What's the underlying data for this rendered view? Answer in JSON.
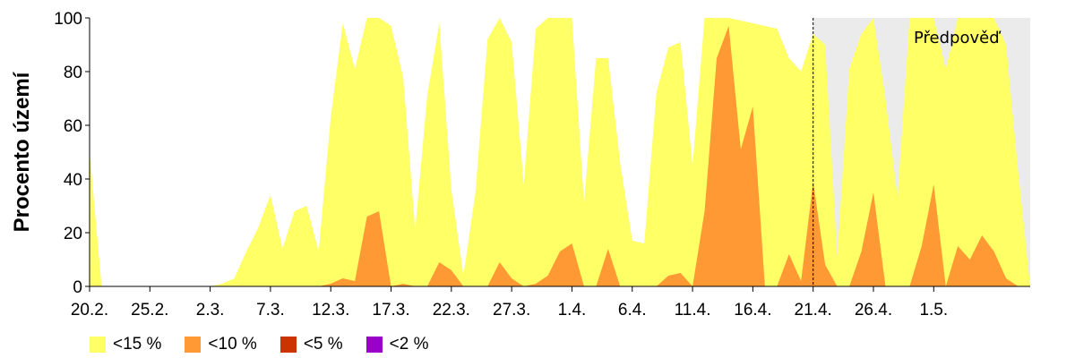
{
  "chart_data": {
    "type": "area",
    "ylabel": "Procento území",
    "ylim": [
      0,
      100
    ],
    "yticks": [
      "0",
      "20",
      "40",
      "60",
      "80",
      "100"
    ],
    "x_start": "20.2.",
    "x_end": "1.5.",
    "xticks": [
      "20.2.",
      "25.2.",
      "2.3.",
      "7.3.",
      "12.3.",
      "17.3.",
      "22.3.",
      "27.3.",
      "1.4.",
      "6.4.",
      "11.4.",
      "16.4.",
      "21.4.",
      "26.4.",
      "1.5."
    ],
    "forecast_label": "Předpověď",
    "forecast_start": "21.4.",
    "series": [
      {
        "name": "<15 %",
        "color": "#ffff66",
        "values": [
          50,
          0,
          0,
          0,
          0,
          0,
          0,
          0,
          0,
          0,
          0,
          1,
          3,
          13,
          22,
          34,
          14,
          28,
          30,
          13,
          63,
          98,
          81,
          100,
          100,
          97,
          78,
          21,
          71,
          98,
          36,
          4,
          35,
          92,
          100,
          91,
          38,
          96,
          100,
          100,
          100,
          31,
          85,
          85,
          46,
          17,
          16,
          72,
          89,
          91,
          45,
          100,
          100,
          100,
          99,
          98,
          97,
          96,
          85,
          80,
          94,
          90,
          11,
          81,
          94,
          100,
          70,
          33,
          100,
          100,
          100,
          81,
          100,
          100,
          100,
          100,
          90,
          43,
          0
        ]
      },
      {
        "name": "<10 %",
        "color": "#ff9933",
        "values": [
          0,
          0,
          0,
          0,
          0,
          0,
          0,
          0,
          0,
          0,
          0,
          0,
          0,
          0,
          0,
          0,
          0,
          0,
          0,
          0,
          1,
          3,
          2,
          26,
          28,
          0,
          1,
          0,
          0,
          9,
          6,
          0,
          0,
          0,
          9,
          3,
          0,
          1,
          4,
          13,
          16,
          0,
          0,
          14,
          0,
          0,
          0,
          0,
          4,
          5,
          0,
          28,
          85,
          97,
          51,
          67,
          0,
          0,
          12,
          2,
          39,
          8,
          0,
          0,
          13,
          35,
          0,
          0,
          0,
          15,
          38,
          0,
          15,
          10,
          19,
          13,
          3,
          0,
          0
        ]
      },
      {
        "name": "<5 %",
        "color": "#cc3300",
        "values": [
          0,
          0,
          0,
          0,
          0,
          0,
          0,
          0,
          0,
          0,
          0,
          0,
          0,
          0,
          0,
          0,
          0,
          0,
          0,
          0,
          0,
          0,
          0,
          0,
          0,
          0,
          0,
          0,
          0,
          0,
          0,
          0,
          0,
          0,
          0,
          0,
          0,
          0,
          0,
          0,
          0,
          0,
          0,
          0,
          0,
          0,
          0,
          0,
          0,
          0,
          0,
          0,
          0,
          0,
          0,
          0,
          0,
          0,
          0,
          0,
          0,
          0,
          0,
          0,
          0,
          0,
          0,
          0,
          0,
          0,
          0,
          0,
          0,
          0,
          0,
          0,
          0,
          0,
          0
        ]
      },
      {
        "name": "<2 %",
        "color": "#9900cc",
        "values": [
          0,
          0,
          0,
          0,
          0,
          0,
          0,
          0,
          0,
          0,
          0,
          0,
          0,
          0,
          0,
          0,
          0,
          0,
          0,
          0,
          0,
          0,
          0,
          0,
          0,
          0,
          0,
          0,
          0,
          0,
          0,
          0,
          0,
          0,
          0,
          0,
          0,
          0,
          0,
          0,
          0,
          0,
          0,
          0,
          0,
          0,
          0,
          0,
          0,
          0,
          0,
          0,
          0,
          0,
          0,
          0,
          0,
          0,
          0,
          0,
          0,
          0,
          0,
          0,
          0,
          0,
          0,
          0,
          0,
          0,
          0,
          0,
          0,
          0,
          0,
          0,
          0,
          0,
          0
        ]
      }
    ],
    "forecast_shade_color": "#ebebeb",
    "grid": false,
    "legend_position": "bottom-left"
  }
}
